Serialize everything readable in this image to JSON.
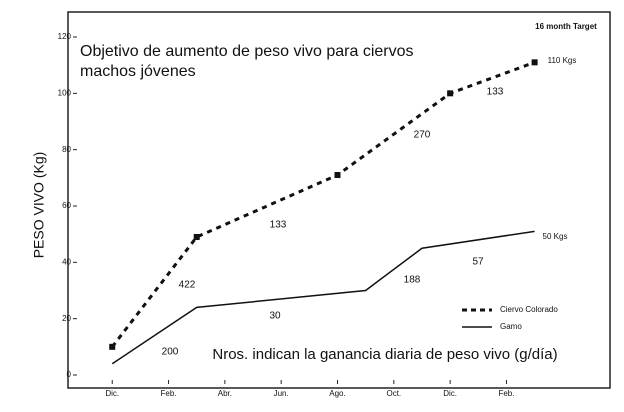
{
  "chart_data": {
    "type": "line",
    "title": "Objetivo de aumento de peso vivo para ciervos machos jóvenes",
    "y_label": "PESO VIVO (Kg)",
    "note": "Nros. indican la ganancia diaria de peso vivo (g/día)",
    "target_label": "16 month Target",
    "xlim": [
      -1.5,
      17.5
    ],
    "xticks": [
      {
        "value": 0,
        "label": "Dic."
      },
      {
        "value": 2,
        "label": "Feb."
      },
      {
        "value": 4,
        "label": "Abr."
      },
      {
        "value": 6,
        "label": "Jun."
      },
      {
        "value": 8,
        "label": "Ago."
      },
      {
        "value": 10,
        "label": "Oct."
      },
      {
        "value": 12,
        "label": "Dic."
      },
      {
        "value": 14,
        "label": "Feb."
      }
    ],
    "ylim": [
      0,
      120
    ],
    "yticks": [
      0,
      20,
      40,
      60,
      80,
      100,
      120
    ],
    "series": [
      {
        "name": "Ciervo Colorado",
        "color": "#111111",
        "dashed": true,
        "x": [
          0,
          3,
          8,
          12,
          15
        ],
        "values": [
          10,
          49,
          71,
          100,
          111
        ],
        "end_label": "110 Kgs",
        "gain_labels": [
          "422",
          "133",
          "270",
          "133"
        ]
      },
      {
        "name": "Gamo",
        "color": "#111111",
        "dashed": false,
        "x": [
          0,
          3,
          9,
          11,
          15
        ],
        "values": [
          4,
          24,
          30,
          45,
          51
        ],
        "end_label": "50 Kgs",
        "gain_labels": [
          "200",
          "30",
          "188",
          "57"
        ]
      }
    ]
  }
}
